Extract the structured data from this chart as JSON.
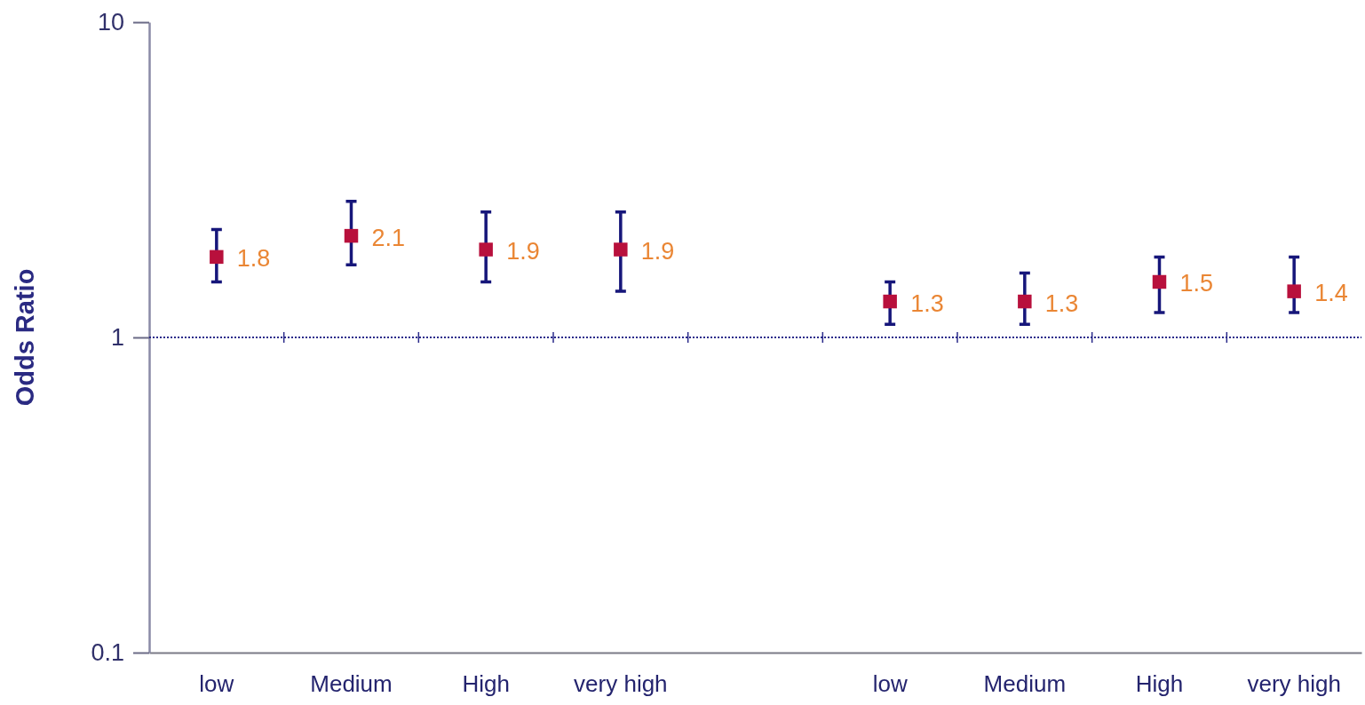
{
  "chart_data": {
    "type": "scatter",
    "ylabel": "Odds Ratio",
    "categories": [
      "low",
      "Medium",
      "High",
      "very high",
      null,
      "low",
      "Medium",
      "High",
      "very high"
    ],
    "series": [
      {
        "color": "#b8103c",
        "values": [
          1.8,
          2.1,
          1.9,
          1.9,
          null,
          1.3,
          1.3,
          1.5,
          1.4
        ],
        "errors": [
          [
            1.5,
            2.2
          ],
          [
            1.7,
            2.7
          ],
          [
            1.5,
            2.5
          ],
          [
            1.4,
            2.5
          ],
          null,
          [
            1.1,
            1.5
          ],
          [
            1.1,
            1.6
          ],
          [
            1.2,
            1.8
          ],
          [
            1.2,
            1.8
          ]
        ]
      }
    ],
    "log": true,
    "ylim": [
      0.1,
      10
    ],
    "yticks": [
      0.1,
      1,
      10
    ],
    "marker": "square",
    "data_labels": true,
    "ref_lines": [
      {
        "axis": "y",
        "value": 1,
        "color": "#2a2a8a",
        "line_style": "dotted"
      }
    ]
  }
}
